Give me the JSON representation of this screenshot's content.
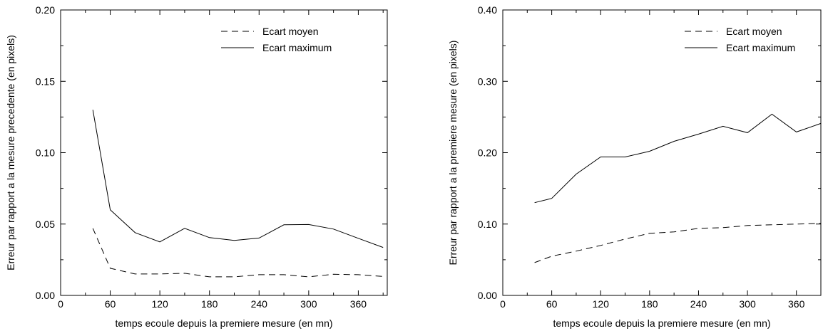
{
  "chart_data": [
    {
      "type": "line",
      "xlabel": "temps ecoule depuis la premiere mesure (en mn)",
      "ylabel": "Erreur par rapport a la mesure precedente (en pixels)",
      "xlim": [
        0,
        395
      ],
      "ylim": [
        0,
        0.2
      ],
      "xticks": [
        0,
        60,
        120,
        180,
        240,
        300,
        360
      ],
      "xtick_labels": [
        "0",
        "60",
        "120",
        "180",
        "240",
        "300",
        "360"
      ],
      "yticks": [
        0,
        0.05,
        0.1,
        0.15,
        0.2
      ],
      "ytick_labels": [
        "0.00",
        "0.05",
        "0.10",
        "0.15",
        "0.20"
      ],
      "legend_position": "top-right",
      "grid": false,
      "series": [
        {
          "name": "Ecart moyen",
          "style": "dashed",
          "x": [
            39,
            60,
            90,
            120,
            150,
            180,
            210,
            240,
            270,
            300,
            330,
            360,
            390
          ],
          "y": [
            0.047,
            0.019,
            0.015,
            0.015,
            0.0155,
            0.013,
            0.013,
            0.0145,
            0.0145,
            0.013,
            0.0148,
            0.0145,
            0.0133
          ]
        },
        {
          "name": "Ecart maximum",
          "style": "solid",
          "x": [
            39,
            60,
            90,
            120,
            150,
            180,
            210,
            240,
            270,
            300,
            330,
            360,
            390
          ],
          "y": [
            0.13,
            0.06,
            0.044,
            0.0375,
            0.047,
            0.0405,
            0.0385,
            0.0402,
            0.0495,
            0.0497,
            0.0465,
            0.04,
            0.0336
          ]
        }
      ]
    },
    {
      "type": "line",
      "xlabel": "temps ecoule depuis la premiere mesure (en mn)",
      "ylabel": "Erreur par rapport a la premiere mesure (en pixels)",
      "xlim": [
        0,
        390
      ],
      "ylim": [
        0,
        0.4
      ],
      "xticks": [
        0,
        60,
        120,
        180,
        240,
        300,
        360
      ],
      "xtick_labels": [
        "0",
        "60",
        "120",
        "180",
        "240",
        "300",
        "360"
      ],
      "yticks": [
        0,
        0.1,
        0.2,
        0.3,
        0.4
      ],
      "ytick_labels": [
        "0.00",
        "0.10",
        "0.20",
        "0.30",
        "0.40"
      ],
      "legend_position": "top-right",
      "grid": false,
      "series": [
        {
          "name": "Ecart moyen",
          "style": "dashed",
          "x": [
            39,
            60,
            90,
            120,
            150,
            180,
            210,
            240,
            270,
            300,
            330,
            360,
            390
          ],
          "y": [
            0.046,
            0.055,
            0.062,
            0.07,
            0.079,
            0.087,
            0.089,
            0.094,
            0.095,
            0.098,
            0.099,
            0.1,
            0.101
          ]
        },
        {
          "name": "Ecart maximum",
          "style": "solid",
          "x": [
            39,
            60,
            90,
            120,
            150,
            180,
            210,
            240,
            270,
            300,
            330,
            360,
            390
          ],
          "y": [
            0.13,
            0.136,
            0.17,
            0.194,
            0.194,
            0.202,
            0.216,
            0.226,
            0.237,
            0.228,
            0.254,
            0.229,
            0.241
          ]
        }
      ]
    }
  ]
}
